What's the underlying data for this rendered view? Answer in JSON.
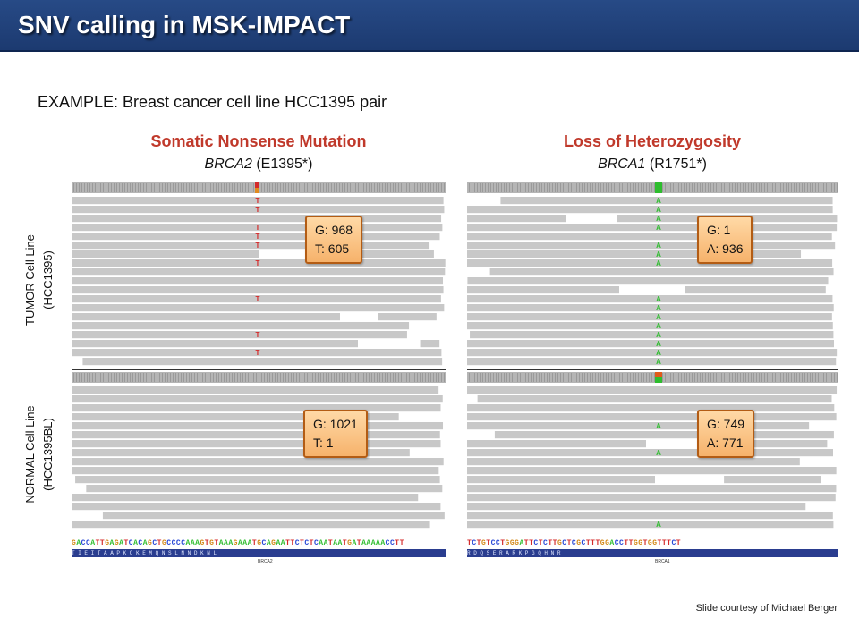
{
  "slide": {
    "title": "SNV calling in MSK-IMPACT",
    "subtitle": "EXAMPLE: Breast cancer cell line HCC1395 pair",
    "credit": "Slide courtesy of Michael Berger"
  },
  "columns": [
    {
      "title": "Somatic Nonsense Mutation",
      "gene": "BRCA2",
      "variant": "(E1395*)"
    },
    {
      "title": "Loss of Heterozygosity",
      "gene": "BRCA1",
      "variant": "(R1751*)"
    }
  ],
  "rows": [
    {
      "label_line1": "TUMOR Cell Line",
      "label_line2": "(HCC1395)"
    },
    {
      "label_line1": "NORMAL Cell Line",
      "label_line2": "(HCC1395BL)"
    }
  ],
  "callouts": {
    "tumor_brca2": {
      "line1": "G: 968",
      "line2": "T: 605"
    },
    "tumor_brca1": {
      "line1": "G: 1",
      "line2": "A: 936"
    },
    "normal_brca2": {
      "line1": "G: 1021",
      "line2": "T: 1"
    },
    "normal_brca1": {
      "line1": "G: 749",
      "line2": "A: 771"
    }
  },
  "reference": {
    "brca2_seq": "GACCATTGAGATCACAGCTGCCCCAAAGTGTAAAGAAATGCAGAATTCTCTCAATAATGATAAAAACCTT",
    "brca2_aa": "T  I  E  I  T  A  A  P  K  C  K  E  M  Q  N  S  L  N  N  D  K  N  L",
    "brca2_gene": "BRCA2",
    "brca1_seq": "TCTGTCCTGGGATTCTCTTGCTCGCTTTGGACCTTGGTGGTTTCT",
    "brca1_aa": "R   D   Q   S   E   R   A   R   K   P   G   Q   H   N   R",
    "brca1_gene": "BRCA1"
  },
  "colors": {
    "title_bar": "#1f3f7a",
    "heading_red": "#c0392b",
    "read_gray": "#c8c8c8",
    "mutation_red": "#d42a2a",
    "mutation_green": "#2ebd2e",
    "callout_fill": "#f9c07f"
  }
}
